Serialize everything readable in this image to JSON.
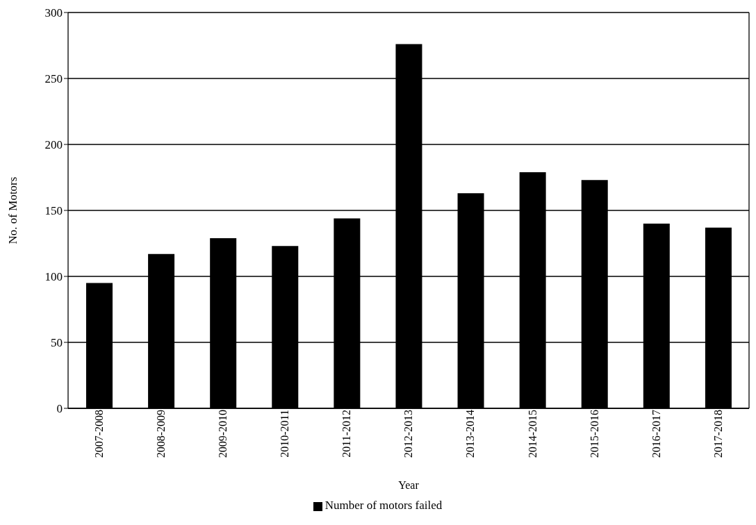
{
  "chart_data": {
    "type": "bar",
    "xlabel": "Year",
    "ylabel": "No. of Motors",
    "categories": [
      "2007-2008",
      "2008-2009",
      "2009-2010",
      "2010-2011",
      "2011-2012",
      "2012-2013",
      "2013-2014",
      "2014-2015",
      "2015-2016",
      "2016-2017",
      "2017-2018"
    ],
    "series": [
      {
        "name": "Number of motors failed",
        "color": "#000000",
        "values": [
          95,
          117,
          129,
          123,
          144,
          276,
          163,
          179,
          173,
          140,
          137
        ]
      }
    ],
    "ylim": [
      0,
      300
    ],
    "yticks": [
      0,
      50,
      100,
      150,
      200,
      250,
      300
    ],
    "grid": "y",
    "legend": "bottom"
  }
}
